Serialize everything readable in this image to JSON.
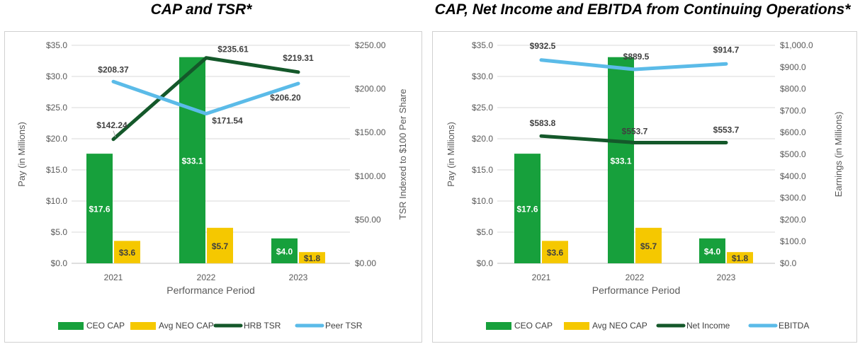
{
  "chart_data": [
    {
      "type": "bar+line",
      "title": "CAP and TSR*",
      "xlabel": "Performance Period",
      "ylabel_left": "Pay (in Millions)",
      "ylabel_right": "TSR Indexed to $100 Per Share",
      "categories": [
        "2021",
        "2022",
        "2023"
      ],
      "y_left": {
        "min": 0,
        "max": 35,
        "step": 5,
        "ticks": [
          "$0.0",
          "$5.0",
          "$10.0",
          "$15.0",
          "$20.0",
          "$25.0",
          "$30.0",
          "$35.0"
        ]
      },
      "y_right": {
        "min": 0,
        "max": 250,
        "step": 50,
        "ticks": [
          "$0.00",
          "$50.00",
          "$100.00",
          "$150.00",
          "$200.00",
          "$250.00"
        ]
      },
      "bars": [
        {
          "name": "CEO CAP",
          "color": "#17a03c",
          "values": [
            17.6,
            33.1,
            4.0
          ],
          "labels": [
            "$17.6",
            "$33.1",
            "$4.0"
          ]
        },
        {
          "name": "Avg NEO CAP",
          "color": "#f5c800",
          "values": [
            3.6,
            5.7,
            1.8
          ],
          "labels": [
            "$3.6",
            "$5.7",
            "$1.8"
          ]
        }
      ],
      "lines": [
        {
          "name": "HRB TSR",
          "color": "#14582a",
          "values": [
            142.24,
            235.61,
            219.31
          ],
          "labels": [
            "$142.24",
            "$235.61",
            "$219.31"
          ]
        },
        {
          "name": "Peer TSR",
          "color": "#5bbbe8",
          "values": [
            208.37,
            171.54,
            206.2
          ],
          "labels": [
            "$208.37",
            "$171.54",
            "$206.20"
          ]
        }
      ],
      "legend": [
        "CEO CAP",
        "Avg NEO CAP",
        "HRB TSR",
        "Peer TSR"
      ]
    },
    {
      "type": "bar+line",
      "title": "CAP, Net Income and EBITDA from Continuing Operations*",
      "xlabel": "Performance Period",
      "ylabel_left": "Pay (in Millions)",
      "ylabel_right": "Earnings (in Millions)",
      "categories": [
        "2021",
        "2022",
        "2023"
      ],
      "y_left": {
        "min": 0,
        "max": 35,
        "step": 5,
        "ticks": [
          "$0.0",
          "$5.0",
          "$10.0",
          "$15.0",
          "$20.0",
          "$25.0",
          "$30.0",
          "$35.0"
        ]
      },
      "y_right": {
        "min": 0,
        "max": 1000,
        "step": 100,
        "ticks": [
          "$0.0",
          "$100.0",
          "$200.0",
          "$300.0",
          "$400.0",
          "$500.0",
          "$600.0",
          "$700.0",
          "$800.0",
          "$900.0",
          "$1,000.0"
        ]
      },
      "bars": [
        {
          "name": "CEO CAP",
          "color": "#17a03c",
          "values": [
            17.6,
            33.1,
            4.0
          ],
          "labels": [
            "$17.6",
            "$33.1",
            "$4.0"
          ]
        },
        {
          "name": "Avg NEO CAP",
          "color": "#f5c800",
          "values": [
            3.6,
            5.7,
            1.8
          ],
          "labels": [
            "$3.6",
            "$5.7",
            "$1.8"
          ]
        }
      ],
      "lines": [
        {
          "name": "Net Income",
          "color": "#14582a",
          "values": [
            583.8,
            553.7,
            553.7
          ],
          "labels": [
            "$583.8",
            "$553.7",
            "$553.7"
          ]
        },
        {
          "name": "EBITDA",
          "color": "#5bbbe8",
          "values": [
            932.5,
            889.5,
            914.7
          ],
          "labels": [
            "$932.5",
            "$889.5",
            "$914.7"
          ]
        }
      ],
      "legend": [
        "CEO CAP",
        "Avg NEO CAP",
        "Net Income",
        "EBITDA"
      ]
    }
  ]
}
